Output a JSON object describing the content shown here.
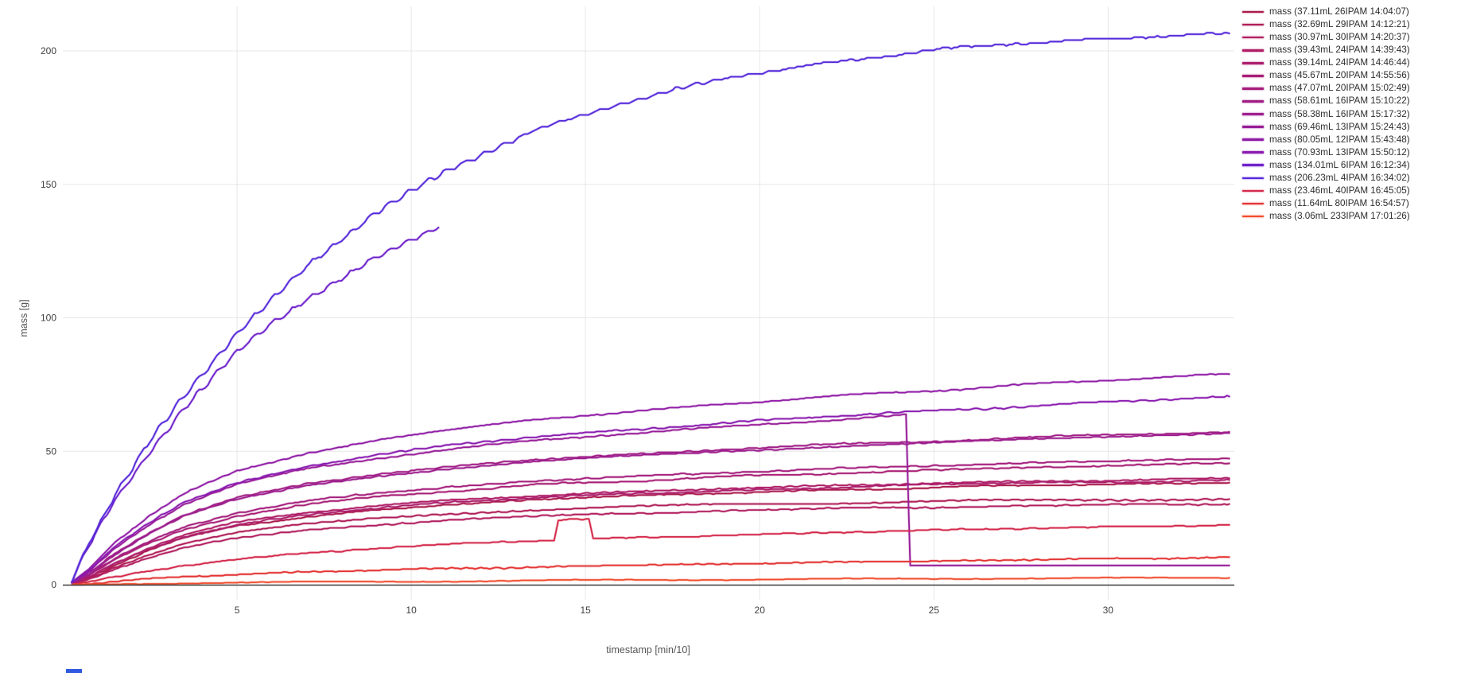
{
  "chart_data": {
    "type": "line",
    "title": "",
    "xlabel": "timestamp [min/10]",
    "ylabel": "mass [g]",
    "xlim": [
      0,
      33.6
    ],
    "ylim": [
      0,
      210
    ],
    "x_ticks": [
      5,
      10,
      15,
      20,
      25,
      30
    ],
    "y_ticks": [
      0,
      50,
      100,
      150,
      200
    ],
    "grid": true,
    "legend_position": "right",
    "series": [
      {
        "name": "mass (37.11mL 26IPAM 14:04:07)",
        "color": "#ab1a4d",
        "points": [
          [
            0.25,
            0.3
          ],
          [
            0.75,
            2.8
          ],
          [
            1.5,
            7.5
          ],
          [
            2.5,
            13
          ],
          [
            3.5,
            17.5
          ],
          [
            5,
            22
          ],
          [
            7,
            25.5
          ],
          [
            9,
            28
          ],
          [
            11,
            30
          ],
          [
            13.5,
            31.8
          ],
          [
            16,
            33.1
          ],
          [
            19,
            34.4
          ],
          [
            22,
            35.5
          ],
          [
            25,
            36.4
          ],
          [
            28,
            37.2
          ],
          [
            31,
            37.8
          ],
          [
            33.5,
            38.3
          ]
        ]
      },
      {
        "name": "mass (32.69mL 29IPAM 14:12:21)",
        "color": "#b01d58",
        "points": [
          [
            0.25,
            0.3
          ],
          [
            0.75,
            2.5
          ],
          [
            1.5,
            6.8
          ],
          [
            2.5,
            11.5
          ],
          [
            3.5,
            15.5
          ],
          [
            5,
            19.5
          ],
          [
            7,
            22.7
          ],
          [
            9,
            24.9
          ],
          [
            11,
            26.5
          ],
          [
            13.5,
            28
          ],
          [
            16,
            29.1
          ],
          [
            19,
            30
          ],
          [
            22,
            30.7
          ],
          [
            25,
            31.2
          ],
          [
            28,
            31.6
          ],
          [
            31,
            31.9
          ],
          [
            33.5,
            32.1
          ]
        ]
      },
      {
        "name": "mass (30.97mL 30IPAM 14:20:37)",
        "color": "#b21f60",
        "points": [
          [
            0.25,
            0.2
          ],
          [
            0.75,
            2.2
          ],
          [
            1.5,
            6
          ],
          [
            2.5,
            10.2
          ],
          [
            3.5,
            13.8
          ],
          [
            5,
            17.4
          ],
          [
            7,
            20.4
          ],
          [
            9,
            22.5
          ],
          [
            11,
            24.1
          ],
          [
            13.5,
            25.6
          ],
          [
            16,
            26.7
          ],
          [
            19,
            27.7
          ],
          [
            22,
            28.5
          ],
          [
            25,
            29.1
          ],
          [
            28,
            29.6
          ],
          [
            31,
            30
          ],
          [
            33.5,
            30.3
          ]
        ]
      },
      {
        "name": "mass (39.43mL 24IPAM 14:39:43)",
        "color": "#af1e66",
        "points": [
          [
            0.25,
            0.3
          ],
          [
            0.75,
            3
          ],
          [
            1.5,
            8.2
          ],
          [
            2.5,
            14
          ],
          [
            3.5,
            18.8
          ],
          [
            5,
            23.4
          ],
          [
            7,
            27.1
          ],
          [
            9,
            29.6
          ],
          [
            11,
            31.5
          ],
          [
            13.5,
            33.3
          ],
          [
            16,
            34.7
          ],
          [
            19,
            36
          ],
          [
            22,
            37.1
          ],
          [
            25,
            38
          ],
          [
            28,
            38.7
          ],
          [
            31,
            39.3
          ],
          [
            33.5,
            39.8
          ]
        ]
      },
      {
        "name": "mass (39.14mL 24IPAM 14:46:44)",
        "color": "#ac1e6d",
        "points": [
          [
            0.25,
            0.3
          ],
          [
            0.75,
            2.9
          ],
          [
            1.5,
            7.9
          ],
          [
            2.5,
            13.4
          ],
          [
            3.5,
            18
          ],
          [
            5,
            22.5
          ],
          [
            7,
            26.2
          ],
          [
            9,
            28.8
          ],
          [
            11,
            30.7
          ],
          [
            13.5,
            32.5
          ],
          [
            16,
            33.9
          ],
          [
            19,
            35.3
          ],
          [
            22,
            36.4
          ],
          [
            25,
            37.4
          ],
          [
            28,
            38.2
          ],
          [
            31,
            38.8
          ],
          [
            33.5,
            39.2
          ]
        ]
      },
      {
        "name": "mass (45.67mL 20IPAM 14:55:56)",
        "color": "#a81e75",
        "points": [
          [
            0.25,
            0.4
          ],
          [
            0.75,
            3.4
          ],
          [
            1.5,
            9.2
          ],
          [
            2.5,
            15.5
          ],
          [
            3.5,
            20.8
          ],
          [
            5,
            25.8
          ],
          [
            7,
            30
          ],
          [
            9,
            32.9
          ],
          [
            11,
            35.1
          ],
          [
            13.5,
            37.2
          ],
          [
            16,
            38.8
          ],
          [
            19,
            40.4
          ],
          [
            22,
            41.7
          ],
          [
            25,
            42.9
          ],
          [
            28,
            44
          ],
          [
            31,
            44.9
          ],
          [
            33.5,
            45.5
          ]
        ]
      },
      {
        "name": "mass (47.07mL 20IPAM 15:02:49)",
        "color": "#a51e7d",
        "points": [
          [
            0.25,
            0.4
          ],
          [
            0.75,
            3.6
          ],
          [
            1.5,
            9.7
          ],
          [
            2.5,
            16.3
          ],
          [
            3.5,
            21.8
          ],
          [
            5,
            27
          ],
          [
            7,
            31.3
          ],
          [
            9,
            34.3
          ],
          [
            11,
            36.6
          ],
          [
            13.5,
            38.7
          ],
          [
            16,
            40.4
          ],
          [
            19,
            42
          ],
          [
            22,
            43.4
          ],
          [
            25,
            44.6
          ],
          [
            28,
            45.7
          ],
          [
            31,
            46.6
          ],
          [
            33.5,
            47.2
          ]
        ]
      },
      {
        "name": "mass (58.61mL 16IPAM 15:10:22)",
        "color": "#a11e86",
        "points": [
          [
            0.25,
            0.5
          ],
          [
            0.75,
            4.3
          ],
          [
            1.5,
            11.7
          ],
          [
            2.5,
            19.7
          ],
          [
            3.5,
            26.3
          ],
          [
            5,
            32.6
          ],
          [
            7,
            37.8
          ],
          [
            9,
            41.4
          ],
          [
            11,
            44.1
          ],
          [
            13.5,
            46.7
          ],
          [
            16,
            48.7
          ],
          [
            19,
            50.7
          ],
          [
            22,
            52.4
          ],
          [
            25,
            53.9
          ],
          [
            28,
            55.2
          ],
          [
            31,
            56.4
          ],
          [
            33.5,
            57.3
          ]
        ]
      },
      {
        "name": "mass (58.38mL 16IPAM 15:17:32)",
        "color": "#9d1e8e",
        "points": [
          [
            0.25,
            0.5
          ],
          [
            0.75,
            4.2
          ],
          [
            1.5,
            11.3
          ],
          [
            2.5,
            19.2
          ],
          [
            3.5,
            25.7
          ],
          [
            5,
            31.9
          ],
          [
            7,
            37.1
          ],
          [
            9,
            40.7
          ],
          [
            11,
            43.4
          ],
          [
            13.5,
            46
          ],
          [
            16,
            48
          ],
          [
            19,
            50
          ],
          [
            22,
            51.7
          ],
          [
            25,
            53.2
          ],
          [
            28,
            54.6
          ],
          [
            31,
            55.8
          ],
          [
            33.5,
            56.8
          ]
        ]
      },
      {
        "name": "mass (69.46mL 13IPAM 15:24:43)",
        "color": "#981d99",
        "noise_off_after": 24.3,
        "points": [
          [
            0.25,
            0.5
          ],
          [
            0.75,
            5
          ],
          [
            1.5,
            13.8
          ],
          [
            2.5,
            22.8
          ],
          [
            3.5,
            30.3
          ],
          [
            5,
            37.4
          ],
          [
            7,
            43.4
          ],
          [
            9,
            47.5
          ],
          [
            11,
            50.6
          ],
          [
            13.5,
            53.9
          ],
          [
            16,
            56.4
          ],
          [
            19,
            59.2
          ],
          [
            22,
            61.7
          ],
          [
            24.2,
            63.6
          ],
          [
            24.32,
            7.2
          ],
          [
            26,
            7.2
          ],
          [
            28,
            7.2
          ],
          [
            31,
            7.2
          ],
          [
            33.5,
            7.2
          ]
        ]
      },
      {
        "name": "mass (80.05mL 12IPAM 15:43:48)",
        "color": "#901ca6",
        "points": [
          [
            0.25,
            0.6
          ],
          [
            0.75,
            5.8
          ],
          [
            1.5,
            16
          ],
          [
            2.5,
            26
          ],
          [
            3.5,
            34.3
          ],
          [
            5,
            42.4
          ],
          [
            7,
            49.3
          ],
          [
            9,
            54.2
          ],
          [
            11,
            57.9
          ],
          [
            13.5,
            61.7
          ],
          [
            16,
            64.6
          ],
          [
            19,
            67.7
          ],
          [
            22,
            70.4
          ],
          [
            25,
            72.9
          ],
          [
            28,
            75.2
          ],
          [
            31,
            77.3
          ],
          [
            33.5,
            78.9
          ]
        ]
      },
      {
        "name": "mass (70.93mL 13IPAM 15:50:12)",
        "color": "#8a1bb0",
        "points": [
          [
            0.25,
            0.5
          ],
          [
            0.75,
            5.2
          ],
          [
            1.5,
            14.3
          ],
          [
            2.5,
            23.3
          ],
          [
            3.5,
            31
          ],
          [
            5,
            38.2
          ],
          [
            7,
            44.4
          ],
          [
            9,
            48.7
          ],
          [
            11,
            52
          ],
          [
            13.5,
            55.3
          ],
          [
            16,
            57.9
          ],
          [
            19,
            60.6
          ],
          [
            22,
            63
          ],
          [
            25,
            65.2
          ],
          [
            28,
            67.2
          ],
          [
            31,
            69
          ],
          [
            33.5,
            70.4
          ]
        ]
      },
      {
        "name": "mass (134.01mL 6IPAM 16:12:34)",
        "color": "#6e21cb",
        "stair": true,
        "noise_amp": 1.6,
        "qstep": 0.55,
        "points": [
          [
            0.25,
            1.2
          ],
          [
            0.75,
            15
          ],
          [
            1.5,
            32
          ],
          [
            2.5,
            50
          ],
          [
            3.5,
            66
          ],
          [
            5,
            87
          ],
          [
            6,
            98
          ],
          [
            7,
            107
          ],
          [
            8,
            115
          ],
          [
            9,
            123
          ],
          [
            10,
            129
          ],
          [
            10.8,
            134
          ]
        ]
      },
      {
        "name": "mass (206.23mL 4IPAM 16:34:02)",
        "color": "#5529da",
        "stair": true,
        "noise_amp": 1.6,
        "qstep": 0.55,
        "points": [
          [
            0.25,
            1.5
          ],
          [
            0.75,
            16
          ],
          [
            1.5,
            34
          ],
          [
            2.5,
            54
          ],
          [
            3.5,
            71
          ],
          [
            5,
            94
          ],
          [
            7,
            119
          ],
          [
            9,
            140
          ],
          [
            11,
            155
          ],
          [
            13.5,
            170
          ],
          [
            16,
            180.5
          ],
          [
            19,
            189.5
          ],
          [
            22,
            196
          ],
          [
            25,
            200.3
          ],
          [
            28,
            203.2
          ],
          [
            31,
            205.2
          ],
          [
            33.5,
            206.5
          ]
        ]
      },
      {
        "name": "mass (23.46mL 40IPAM 16:45:05)",
        "color": "#d4294b",
        "points": [
          [
            0.25,
            0.2
          ],
          [
            0.75,
            1.1
          ],
          [
            1.5,
            2.8
          ],
          [
            2.5,
            5
          ],
          [
            3.5,
            7
          ],
          [
            5,
            9.5
          ],
          [
            7,
            11.9
          ],
          [
            9,
            13.7
          ],
          [
            11,
            15.1
          ],
          [
            13,
            16.2
          ],
          [
            14.1,
            16.6
          ],
          [
            14.22,
            24.3
          ],
          [
            15.1,
            24.6
          ],
          [
            15.22,
            17.2
          ],
          [
            16,
            17.5
          ],
          [
            19,
            18.5
          ],
          [
            22,
            19.5
          ],
          [
            25,
            20.4
          ],
          [
            28,
            21.2
          ],
          [
            31,
            21.9
          ],
          [
            33.5,
            22.4
          ]
        ]
      },
      {
        "name": "mass (11.64mL 80IPAM 16:54:57)",
        "color": "#e43434",
        "noise_amp": 0.8,
        "points": [
          [
            0.25,
            0.1
          ],
          [
            0.75,
            0.5
          ],
          [
            1.5,
            1.2
          ],
          [
            2.5,
            2.1
          ],
          [
            3.5,
            2.9
          ],
          [
            5,
            3.9
          ],
          [
            7,
            4.8
          ],
          [
            9,
            5.5
          ],
          [
            11,
            6
          ],
          [
            13.5,
            6.6
          ],
          [
            16,
            7.2
          ],
          [
            19,
            7.8
          ],
          [
            22,
            8.4
          ],
          [
            25,
            8.9
          ],
          [
            28,
            9.4
          ],
          [
            31,
            9.9
          ],
          [
            33.5,
            10.3
          ]
        ]
      },
      {
        "name": "mass (3.06mL 233IPAM 17:01:26)",
        "color": "#f14c2d",
        "noise_amp": 0.5,
        "qstep": 0.15,
        "points": [
          [
            0.25,
            0
          ],
          [
            0.75,
            0.1
          ],
          [
            1.5,
            0.25
          ],
          [
            2.5,
            0.45
          ],
          [
            3.5,
            0.6
          ],
          [
            5,
            0.8
          ],
          [
            7,
            1
          ],
          [
            9,
            1.15
          ],
          [
            11,
            1.3
          ],
          [
            13.5,
            1.55
          ],
          [
            16,
            1.75
          ],
          [
            19,
            1.95
          ],
          [
            22,
            2.1
          ],
          [
            25,
            2.25
          ],
          [
            28,
            2.4
          ],
          [
            31,
            2.5
          ],
          [
            33.5,
            2.6
          ]
        ]
      }
    ]
  }
}
